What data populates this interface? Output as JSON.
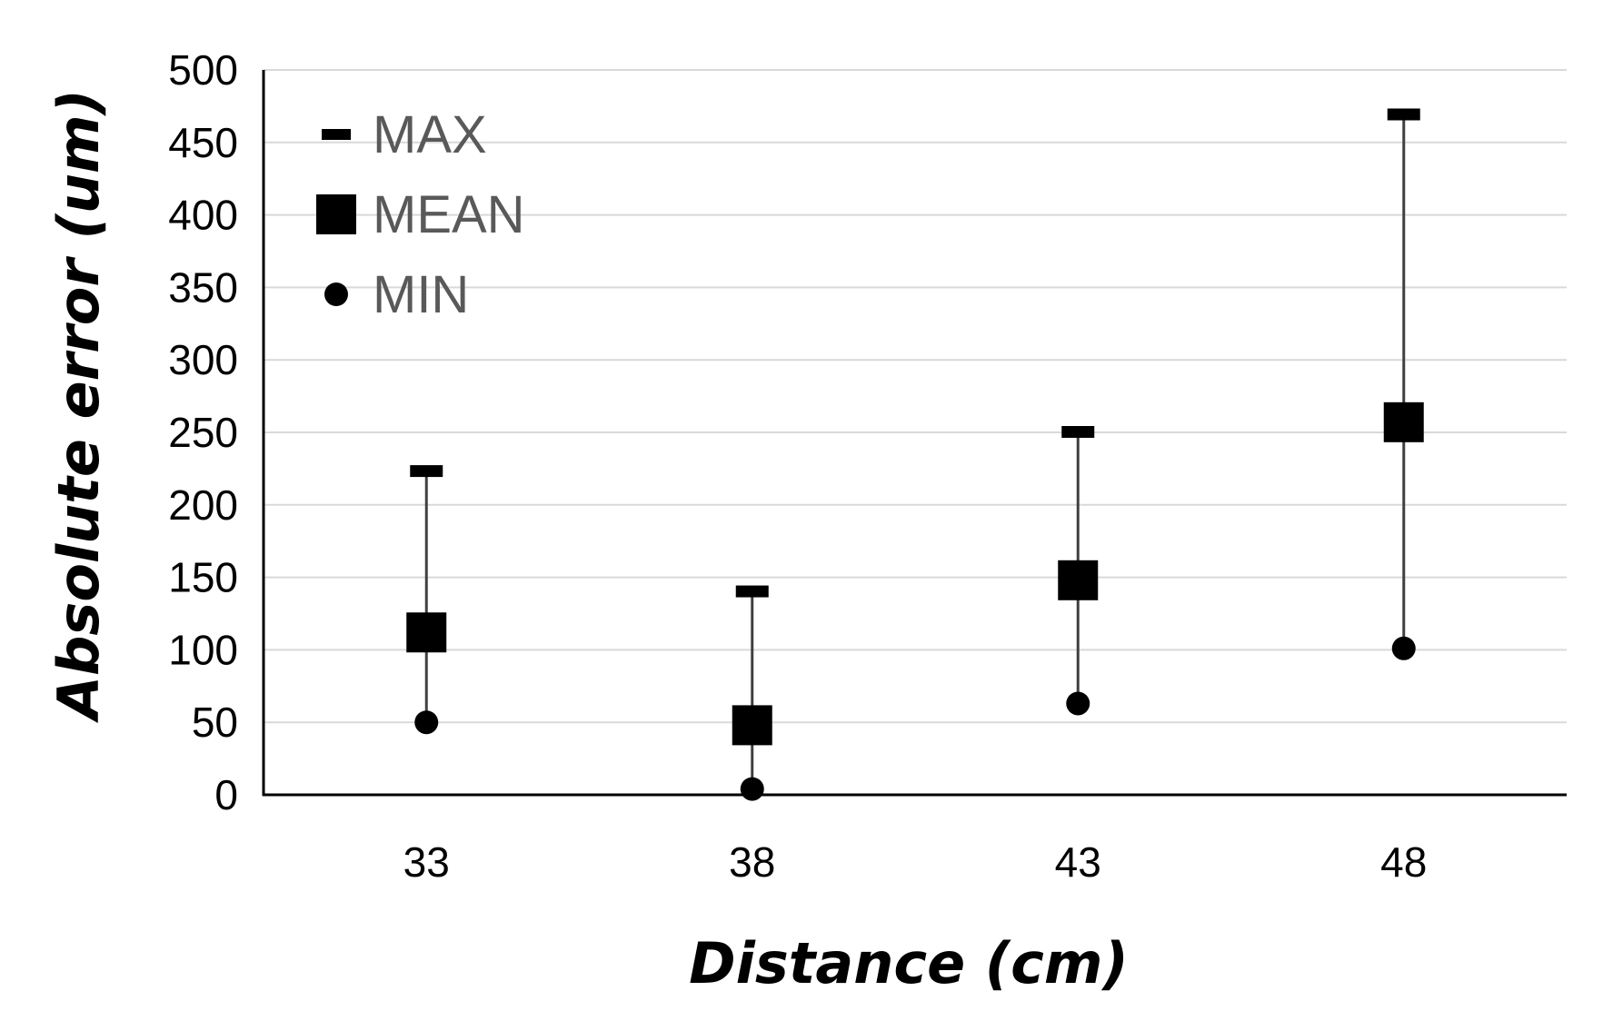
{
  "chart_data": {
    "type": "scatter",
    "title": "",
    "xlabel": "Distance (cm)",
    "ylabel": "Absolute error (um)",
    "categories": [
      "33",
      "38",
      "43",
      "48"
    ],
    "ylim": [
      0,
      500
    ],
    "ytick_step": 50,
    "yticks": [
      "0",
      "50",
      "100",
      "150",
      "200",
      "250",
      "300",
      "350",
      "400",
      "450",
      "500"
    ],
    "grid": true,
    "legend_position": "top-left",
    "series": [
      {
        "name": "MAX",
        "marker": "dash",
        "values": [
          223,
          140,
          250,
          469
        ]
      },
      {
        "name": "MEAN",
        "marker": "square",
        "values": [
          112,
          48,
          148,
          257
        ]
      },
      {
        "name": "MIN",
        "marker": "circle",
        "values": [
          50,
          4,
          63,
          101
        ]
      }
    ],
    "colors": {
      "marker": "#000000",
      "whisker": "#404040",
      "grid": "#d9d9d9",
      "legend_text": "#595959"
    }
  }
}
